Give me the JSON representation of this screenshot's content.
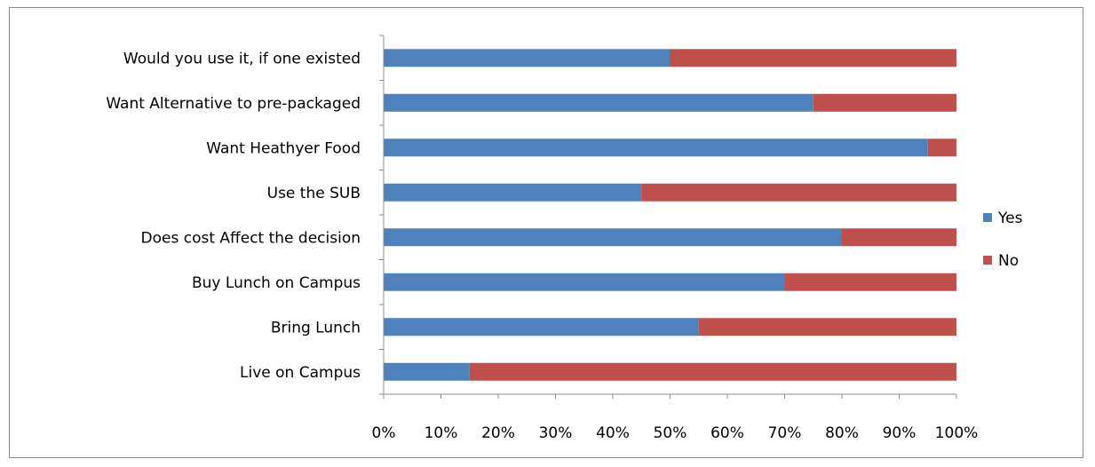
{
  "chart_data": {
    "type": "bar",
    "orientation": "horizontal",
    "stacked": "percent",
    "title": "",
    "xlabel": "",
    "ylabel": "",
    "xlim": [
      0,
      100
    ],
    "x_ticks": [
      "0%",
      "10%",
      "20%",
      "30%",
      "40%",
      "50%",
      "60%",
      "70%",
      "80%",
      "90%",
      "100%"
    ],
    "categories": [
      "Would you use it, if one existed",
      "Want Alternative to pre-packaged",
      "Want Heathyer Food",
      "Use the  SUB",
      "Does cost Affect the decision",
      "Buy Lunch on Campus",
      "Bring Lunch",
      "Live on Campus"
    ],
    "series": [
      {
        "name": "Yes",
        "color": "#4f81bd",
        "values": [
          50,
          75,
          95,
          45,
          80,
          70,
          55,
          15
        ]
      },
      {
        "name": "No",
        "color": "#c0504d",
        "values": [
          50,
          25,
          5,
          55,
          20,
          30,
          45,
          85
        ]
      }
    ],
    "grid": false,
    "legend": "right"
  }
}
